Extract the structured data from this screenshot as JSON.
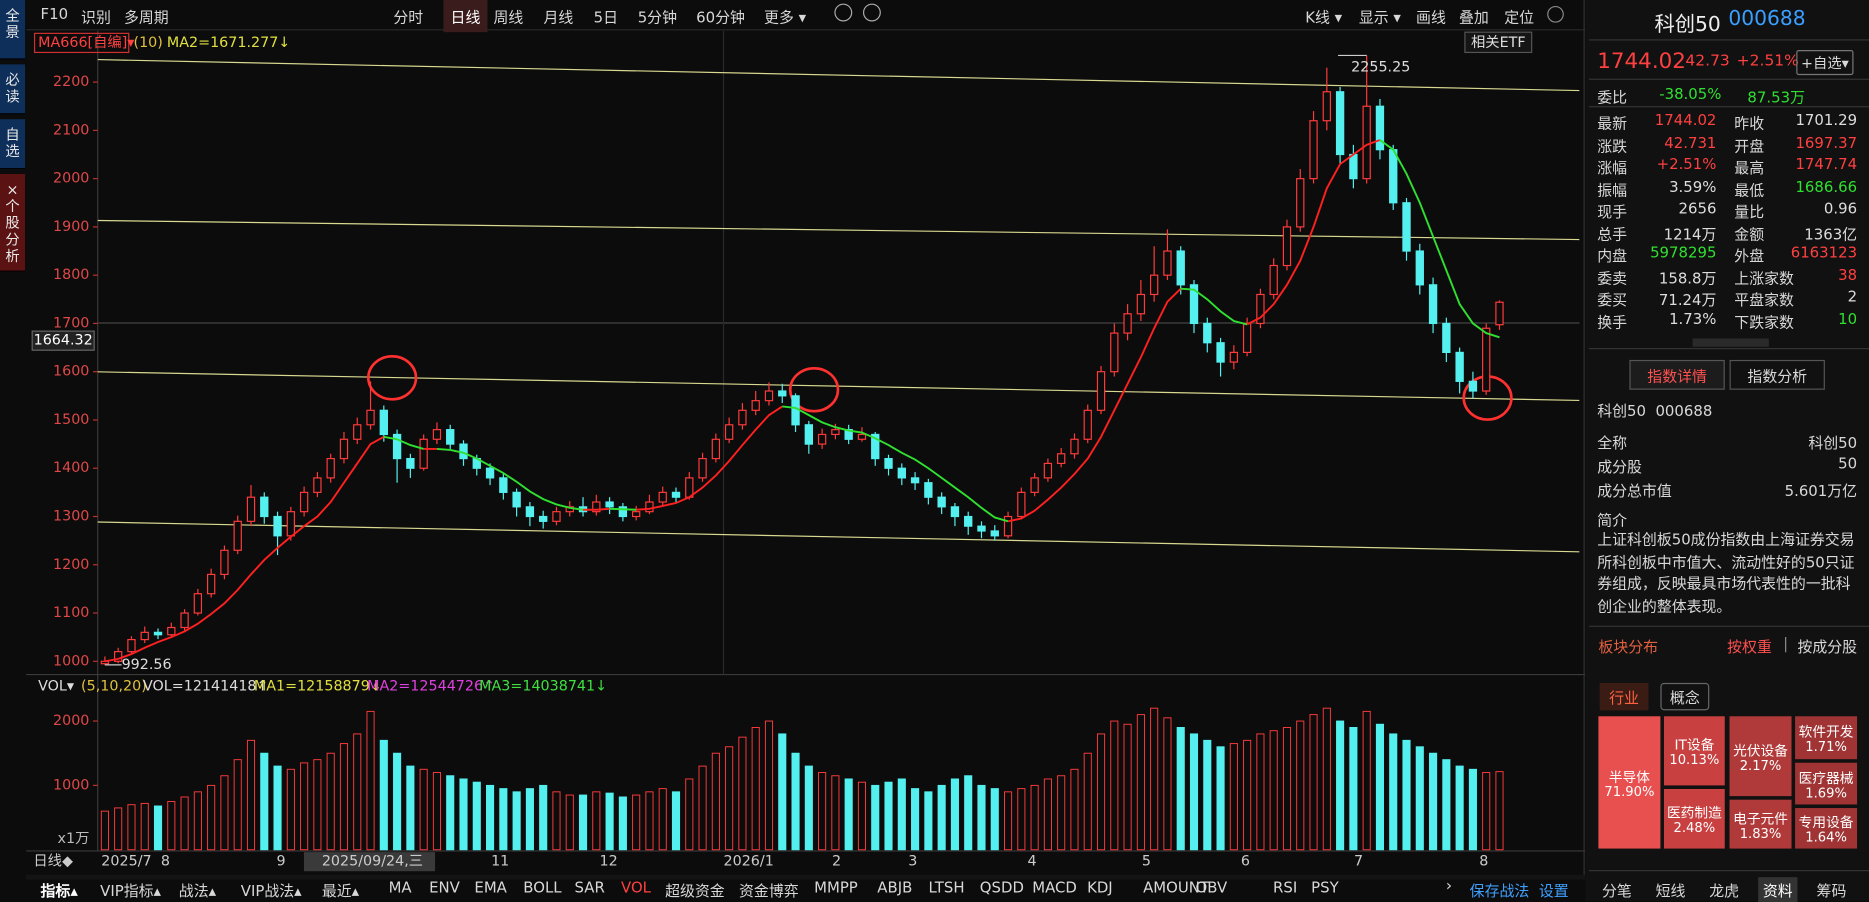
{
  "sidebar": [
    "全景",
    "必读",
    "自选",
    "×个股分析"
  ],
  "toolbar": {
    "left": [
      "F10",
      "识别",
      "多周期"
    ],
    "periods": [
      "分时",
      "日线",
      "周线",
      "月线",
      "5日",
      "5分钟",
      "60分钟",
      "更多 ▾"
    ],
    "right": [
      "K线 ▾",
      "显示 ▾",
      "画线",
      "叠加",
      "定位"
    ]
  },
  "chart_data": [
    {
      "type": "candlestick",
      "legend": {
        "name": "MA666[自编]▾",
        "param": "(10)",
        "ma": "MA2=1671.277↓"
      },
      "etf": "相关ETF",
      "ylim": [
        975,
        2259
      ],
      "yticks": [
        1000,
        1100,
        1200,
        1300,
        1400,
        1500,
        1600,
        1700,
        1800,
        1900,
        2000,
        2100,
        2200
      ],
      "cursor_label": 1664.32,
      "high_label": 2255.25,
      "low_label": 992.56,
      "candles": [
        [
          995,
          1000,
          1010,
          992.56
        ],
        [
          1000,
          1020,
          1028,
          996
        ],
        [
          1020,
          1045,
          1052,
          1015
        ],
        [
          1045,
          1060,
          1072,
          1038
        ],
        [
          1060,
          1055,
          1068,
          1046
        ],
        [
          1055,
          1070,
          1080,
          1050
        ],
        [
          1070,
          1100,
          1108,
          1064
        ],
        [
          1100,
          1140,
          1150,
          1095
        ],
        [
          1140,
          1180,
          1192,
          1132
        ],
        [
          1180,
          1230,
          1240,
          1170
        ],
        [
          1230,
          1290,
          1302,
          1222
        ],
        [
          1290,
          1340,
          1365,
          1280
        ],
        [
          1340,
          1300,
          1350,
          1285
        ],
        [
          1300,
          1260,
          1310,
          1220
        ],
        [
          1260,
          1310,
          1320,
          1250
        ],
        [
          1310,
          1350,
          1362,
          1300
        ],
        [
          1350,
          1380,
          1392,
          1340
        ],
        [
          1380,
          1420,
          1430,
          1370
        ],
        [
          1420,
          1460,
          1475,
          1410
        ],
        [
          1460,
          1490,
          1505,
          1450
        ],
        [
          1490,
          1520,
          1580,
          1480
        ],
        [
          1520,
          1470,
          1530,
          1455
        ],
        [
          1470,
          1420,
          1480,
          1370
        ],
        [
          1420,
          1400,
          1430,
          1380
        ],
        [
          1400,
          1460,
          1470,
          1395
        ],
        [
          1460,
          1480,
          1495,
          1450
        ],
        [
          1480,
          1450,
          1490,
          1440
        ],
        [
          1450,
          1420,
          1458,
          1405
        ],
        [
          1420,
          1400,
          1428,
          1385
        ],
        [
          1400,
          1380,
          1410,
          1365
        ],
        [
          1380,
          1350,
          1390,
          1335
        ],
        [
          1350,
          1320,
          1358,
          1300
        ],
        [
          1320,
          1300,
          1330,
          1280
        ],
        [
          1300,
          1290,
          1312,
          1275
        ],
        [
          1290,
          1310,
          1320,
          1282
        ],
        [
          1310,
          1320,
          1332,
          1300
        ],
        [
          1320,
          1310,
          1340,
          1300
        ],
        [
          1310,
          1330,
          1345,
          1302
        ],
        [
          1330,
          1320,
          1340,
          1305
        ],
        [
          1320,
          1300,
          1328,
          1290
        ],
        [
          1300,
          1310,
          1322,
          1292
        ],
        [
          1310,
          1330,
          1345,
          1305
        ],
        [
          1330,
          1350,
          1362,
          1322
        ],
        [
          1350,
          1340,
          1360,
          1330
        ],
        [
          1340,
          1380,
          1392,
          1335
        ],
        [
          1380,
          1420,
          1432,
          1372
        ],
        [
          1420,
          1460,
          1472,
          1412
        ],
        [
          1460,
          1490,
          1505,
          1452
        ],
        [
          1490,
          1520,
          1535,
          1480
        ],
        [
          1520,
          1540,
          1560,
          1510
        ],
        [
          1540,
          1560,
          1578,
          1530
        ],
        [
          1560,
          1550,
          1575,
          1535
        ],
        [
          1550,
          1490,
          1555,
          1475
        ],
        [
          1490,
          1450,
          1498,
          1430
        ],
        [
          1450,
          1470,
          1482,
          1440
        ],
        [
          1470,
          1480,
          1492,
          1460
        ],
        [
          1480,
          1460,
          1490,
          1450
        ],
        [
          1460,
          1470,
          1485,
          1455
        ],
        [
          1470,
          1420,
          1475,
          1405
        ],
        [
          1420,
          1400,
          1428,
          1385
        ],
        [
          1400,
          1380,
          1410,
          1365
        ],
        [
          1380,
          1370,
          1392,
          1355
        ],
        [
          1370,
          1340,
          1378,
          1325
        ],
        [
          1340,
          1320,
          1350,
          1305
        ],
        [
          1320,
          1300,
          1328,
          1280
        ],
        [
          1300,
          1280,
          1310,
          1262
        ],
        [
          1280,
          1270,
          1290,
          1255
        ],
        [
          1270,
          1260,
          1282,
          1250
        ],
        [
          1260,
          1300,
          1310,
          1255
        ],
        [
          1300,
          1350,
          1360,
          1295
        ],
        [
          1350,
          1380,
          1390,
          1342
        ],
        [
          1380,
          1410,
          1420,
          1372
        ],
        [
          1410,
          1430,
          1442,
          1402
        ],
        [
          1430,
          1460,
          1472,
          1420
        ],
        [
          1460,
          1520,
          1532,
          1452
        ],
        [
          1520,
          1600,
          1612,
          1512
        ],
        [
          1600,
          1680,
          1700,
          1590
        ],
        [
          1680,
          1720,
          1740,
          1665
        ],
        [
          1720,
          1760,
          1790,
          1705
        ],
        [
          1760,
          1800,
          1860,
          1745
        ],
        [
          1800,
          1850,
          1895,
          1790
        ],
        [
          1850,
          1780,
          1860,
          1760
        ],
        [
          1780,
          1700,
          1790,
          1680
        ],
        [
          1700,
          1660,
          1712,
          1640
        ],
        [
          1660,
          1620,
          1670,
          1590
        ],
        [
          1620,
          1640,
          1655,
          1605
        ],
        [
          1640,
          1700,
          1712,
          1632
        ],
        [
          1700,
          1760,
          1772,
          1690
        ],
        [
          1760,
          1820,
          1835,
          1750
        ],
        [
          1820,
          1900,
          1915,
          1810
        ],
        [
          1900,
          2000,
          2020,
          1890
        ],
        [
          2000,
          2120,
          2140,
          1990
        ],
        [
          2120,
          2180,
          2230,
          2100
        ],
        [
          2180,
          2050,
          2190,
          2030
        ],
        [
          2050,
          2000,
          2070,
          1980
        ],
        [
          2000,
          2150,
          2255.25,
          1990
        ],
        [
          2150,
          2060,
          2165,
          2040
        ],
        [
          2060,
          1950,
          2070,
          1935
        ],
        [
          1950,
          1850,
          1960,
          1830
        ],
        [
          1850,
          1780,
          1865,
          1760
        ],
        [
          1780,
          1700,
          1795,
          1680
        ],
        [
          1700,
          1640,
          1712,
          1620
        ],
        [
          1640,
          1580,
          1650,
          1555
        ],
        [
          1580,
          1560,
          1600,
          1545
        ],
        [
          1560,
          1690,
          1700,
          1552
        ],
        [
          1697.37,
          1744.02,
          1747.74,
          1686.66
        ]
      ],
      "ma": [
        1000,
        1005,
        1015,
        1028,
        1040,
        1050,
        1062,
        1078,
        1098,
        1120,
        1148,
        1180,
        1210,
        1235,
        1258,
        1280,
        1300,
        1330,
        1370,
        1410,
        1450,
        1465,
        1460,
        1448,
        1440,
        1440,
        1438,
        1432,
        1420,
        1405,
        1390,
        1372,
        1352,
        1336,
        1325,
        1318,
        1314,
        1314,
        1316,
        1315,
        1314,
        1316,
        1322,
        1328,
        1340,
        1360,
        1385,
        1415,
        1448,
        1480,
        1510,
        1528,
        1525,
        1510,
        1495,
        1485,
        1478,
        1474,
        1462,
        1448,
        1432,
        1418,
        1400,
        1380,
        1360,
        1340,
        1318,
        1298,
        1290,
        1296,
        1312,
        1335,
        1360,
        1388,
        1420,
        1465,
        1520,
        1575,
        1630,
        1690,
        1745,
        1772,
        1770,
        1750,
        1725,
        1705,
        1698,
        1712,
        1740,
        1780,
        1830,
        1900,
        1980,
        2030,
        2050,
        2070,
        2080,
        2060,
        2010,
        1950,
        1880,
        1810,
        1740,
        1700,
        1680,
        1671.277
      ],
      "up_color": "#ff3a3a",
      "down_color": "#54f0f0",
      "ma_up_color": "#ff2020",
      "ma_down_color": "#30e030"
    },
    {
      "type": "bar",
      "legend": {
        "name": "VOL▾",
        "param": "(5,10,20)",
        "vol": "VOL=12141418↑",
        "ma1": "MA1=12158879↓",
        "ma2": "MA2=12544726↑",
        "ma3": "MA3=14038741↓"
      },
      "ylim": [
        0,
        2315
      ],
      "yticks": [
        1000,
        2000
      ],
      "unit": "x1万",
      "values": [
        600,
        650,
        700,
        720,
        680,
        750,
        820,
        900,
        1000,
        1150,
        1400,
        1700,
        1500,
        1300,
        1250,
        1350,
        1400,
        1500,
        1650,
        1800,
        2150,
        1700,
        1500,
        1300,
        1250,
        1200,
        1150,
        1100,
        1050,
        1000,
        950,
        900,
        950,
        1000,
        900,
        850,
        850,
        900,
        880,
        820,
        850,
        900,
        950,
        900,
        1100,
        1300,
        1500,
        1600,
        1750,
        1900,
        2000,
        1800,
        1500,
        1300,
        1200,
        1150,
        1100,
        1050,
        1000,
        1050,
        1100,
        950,
        900,
        1000,
        1100,
        1150,
        1000,
        950,
        900,
        950,
        1000,
        1100,
        1150,
        1250,
        1500,
        1800,
        2000,
        1950,
        2100,
        2200,
        2050,
        1900,
        1800,
        1700,
        1600,
        1650,
        1700,
        1800,
        1850,
        1900,
        2000,
        2100,
        2200,
        2000,
        1900,
        2150,
        1950,
        1800,
        1700,
        1600,
        1500,
        1400,
        1300,
        1250,
        1200,
        1214
      ]
    }
  ],
  "xaxis": {
    "title": "日线◆",
    "labels": [
      "2025/7",
      "8",
      "9",
      "2025/09/24,三",
      "11",
      "12",
      "2026/1",
      "2",
      "3",
      "4",
      "5",
      "6",
      "7",
      "8"
    ]
  },
  "bottombar": {
    "menus": [
      "指标▴",
      "VIP指标▴",
      "战法▴",
      "VIP战法▴",
      "最近▴"
    ],
    "indicators": [
      "MA",
      "ENV",
      "EMA",
      "BOLL",
      "SAR",
      "VOL",
      "超级资金",
      "资金博弈",
      "MMPP",
      "ABJB",
      "LTSH",
      "QSDD",
      "MACD",
      "KDJ",
      "AMOUNT",
      "OBV",
      "RSI",
      "PSY"
    ],
    "arrow": "›",
    "right": [
      "保存战法",
      "设置"
    ]
  },
  "quote": {
    "name": "科创50",
    "code": "000688",
    "price": "1744.02",
    "change": "42.73",
    "pct": "+2.51%",
    "watch": "+自选▾",
    "ratio_label": "委比",
    "ratio": "-38.05%",
    "ratio_amount": "87.53万",
    "rows": [
      [
        "最新",
        "1744.02",
        "昨收",
        "1701.29"
      ],
      [
        "涨跌",
        "42.731",
        "开盘",
        "1697.37"
      ],
      [
        "涨幅",
        "+2.51%",
        "最高",
        "1747.74"
      ],
      [
        "振幅",
        "3.59%",
        "最低",
        "1686.66"
      ],
      [
        "现手",
        "2656",
        "量比",
        "0.96"
      ],
      [
        "总手",
        "1214万",
        "金额",
        "1363亿"
      ],
      [
        "内盘",
        "5978295",
        "外盘",
        "6163123"
      ],
      [
        "委卖",
        "158.8万",
        "上涨家数",
        "38"
      ],
      [
        "委买",
        "71.24万",
        "平盘家数",
        "2"
      ],
      [
        "换手",
        "1.73%",
        "下跌家数",
        "10"
      ]
    ],
    "row_colors": [
      [
        "#ff4040",
        "#dddddd"
      ],
      [
        "#ff4040",
        "#ff4040"
      ],
      [
        "#ff4040",
        "#ff4040"
      ],
      [
        "#dddddd",
        "#30e030"
      ],
      [
        "#dddddd",
        "#dddddd"
      ],
      [
        "#dddddd",
        "#dddddd"
      ],
      [
        "#30e030",
        "#ff4040"
      ],
      [
        "#dddddd",
        "#ff4040"
      ],
      [
        "#dddddd",
        "#dddddd"
      ],
      [
        "#dddddd",
        "#30e030"
      ]
    ]
  },
  "info": {
    "tabs": [
      "指数详情",
      "指数分析"
    ],
    "heading": "科创50  000688",
    "rows": [
      [
        "全称",
        "科创50"
      ],
      [
        "成分股",
        "50"
      ],
      [
        "成分总市值",
        "5.601万亿"
      ]
    ],
    "intro_title": "简介",
    "intro": "上证科创板50成份指数由上海证券交易所科创板中市值大、流动性好的50只证券组成，反映最具市场代表性的一批科创企业的整体表现。"
  },
  "sectors": {
    "title": "板块分布",
    "sort": [
      "按权重",
      "|",
      "按成分股"
    ],
    "tabs": [
      "行业",
      "概念"
    ],
    "items": [
      {
        "name": "半导体",
        "pct": "71.90%"
      },
      {
        "name": "IT设备",
        "pct": "10.13%"
      },
      {
        "name": "医药制造",
        "pct": "2.48%"
      },
      {
        "name": "光伏设备",
        "pct": "2.17%"
      },
      {
        "name": "电子元件",
        "pct": "1.83%"
      },
      {
        "name": "软件开发",
        "pct": "1.71%"
      },
      {
        "name": "医疗器械",
        "pct": "1.69%"
      },
      {
        "name": "专用设备",
        "pct": "1.64%"
      }
    ]
  },
  "bottomtabs": [
    "分笔",
    "短线",
    "龙虎",
    "资料",
    "筹码"
  ]
}
